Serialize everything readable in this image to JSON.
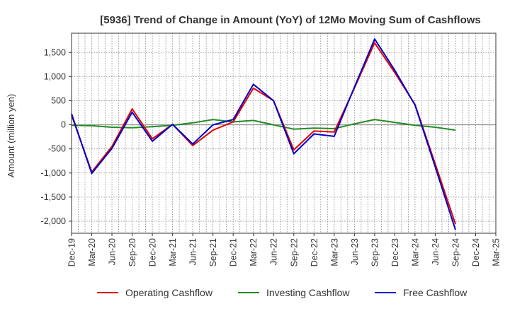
{
  "chart_data": {
    "type": "line",
    "title": "[5936]  Trend of Change in Amount (YoY) of 12Mo Moving Sum of Cashflows",
    "xlabel": "",
    "ylabel": "Amount (million yen)",
    "ylim": [
      -2250,
      1900
    ],
    "yticks": [
      1500,
      1000,
      500,
      0,
      -500,
      -1000,
      -1500,
      -2000
    ],
    "ytick_labels": [
      "1,500",
      "1,000",
      "500",
      "0",
      "-500",
      "-1,000",
      "-1,500",
      "-2,000"
    ],
    "categories": [
      "Dec-19",
      "Mar-20",
      "Jun-20",
      "Sep-20",
      "Dec-20",
      "Mar-21",
      "Jun-21",
      "Sep-21",
      "Dec-21",
      "Mar-22",
      "Jun-22",
      "Sep-22",
      "Dec-22",
      "Mar-23",
      "Jun-23",
      "Sep-23",
      "Dec-23",
      "Mar-24",
      "Jun-24",
      "Sep-24",
      "Dec-24",
      "Mar-25"
    ],
    "grid": true,
    "legend_position": "bottom",
    "series": [
      {
        "name": "Operating Cashflow",
        "color": "#e00000",
        "values": [
          200,
          -980,
          -450,
          330,
          -290,
          10,
          -430,
          -110,
          60,
          760,
          500,
          -520,
          -130,
          -150,
          760,
          1700,
          1080,
          420,
          -810,
          -2060,
          null,
          null
        ]
      },
      {
        "name": "Investing Cashflow",
        "color": "#228b22",
        "values": [
          -10,
          -20,
          -50,
          -60,
          -40,
          -10,
          40,
          110,
          60,
          90,
          0,
          -90,
          -70,
          -80,
          20,
          110,
          50,
          -10,
          -50,
          -110,
          null,
          null
        ]
      },
      {
        "name": "Free Cashflow",
        "color": "#0000cc",
        "values": [
          230,
          -1010,
          -490,
          260,
          -340,
          10,
          -400,
          0,
          110,
          840,
          500,
          -600,
          -190,
          -240,
          780,
          1780,
          1130,
          410,
          -870,
          -2180,
          null,
          null
        ]
      }
    ]
  }
}
